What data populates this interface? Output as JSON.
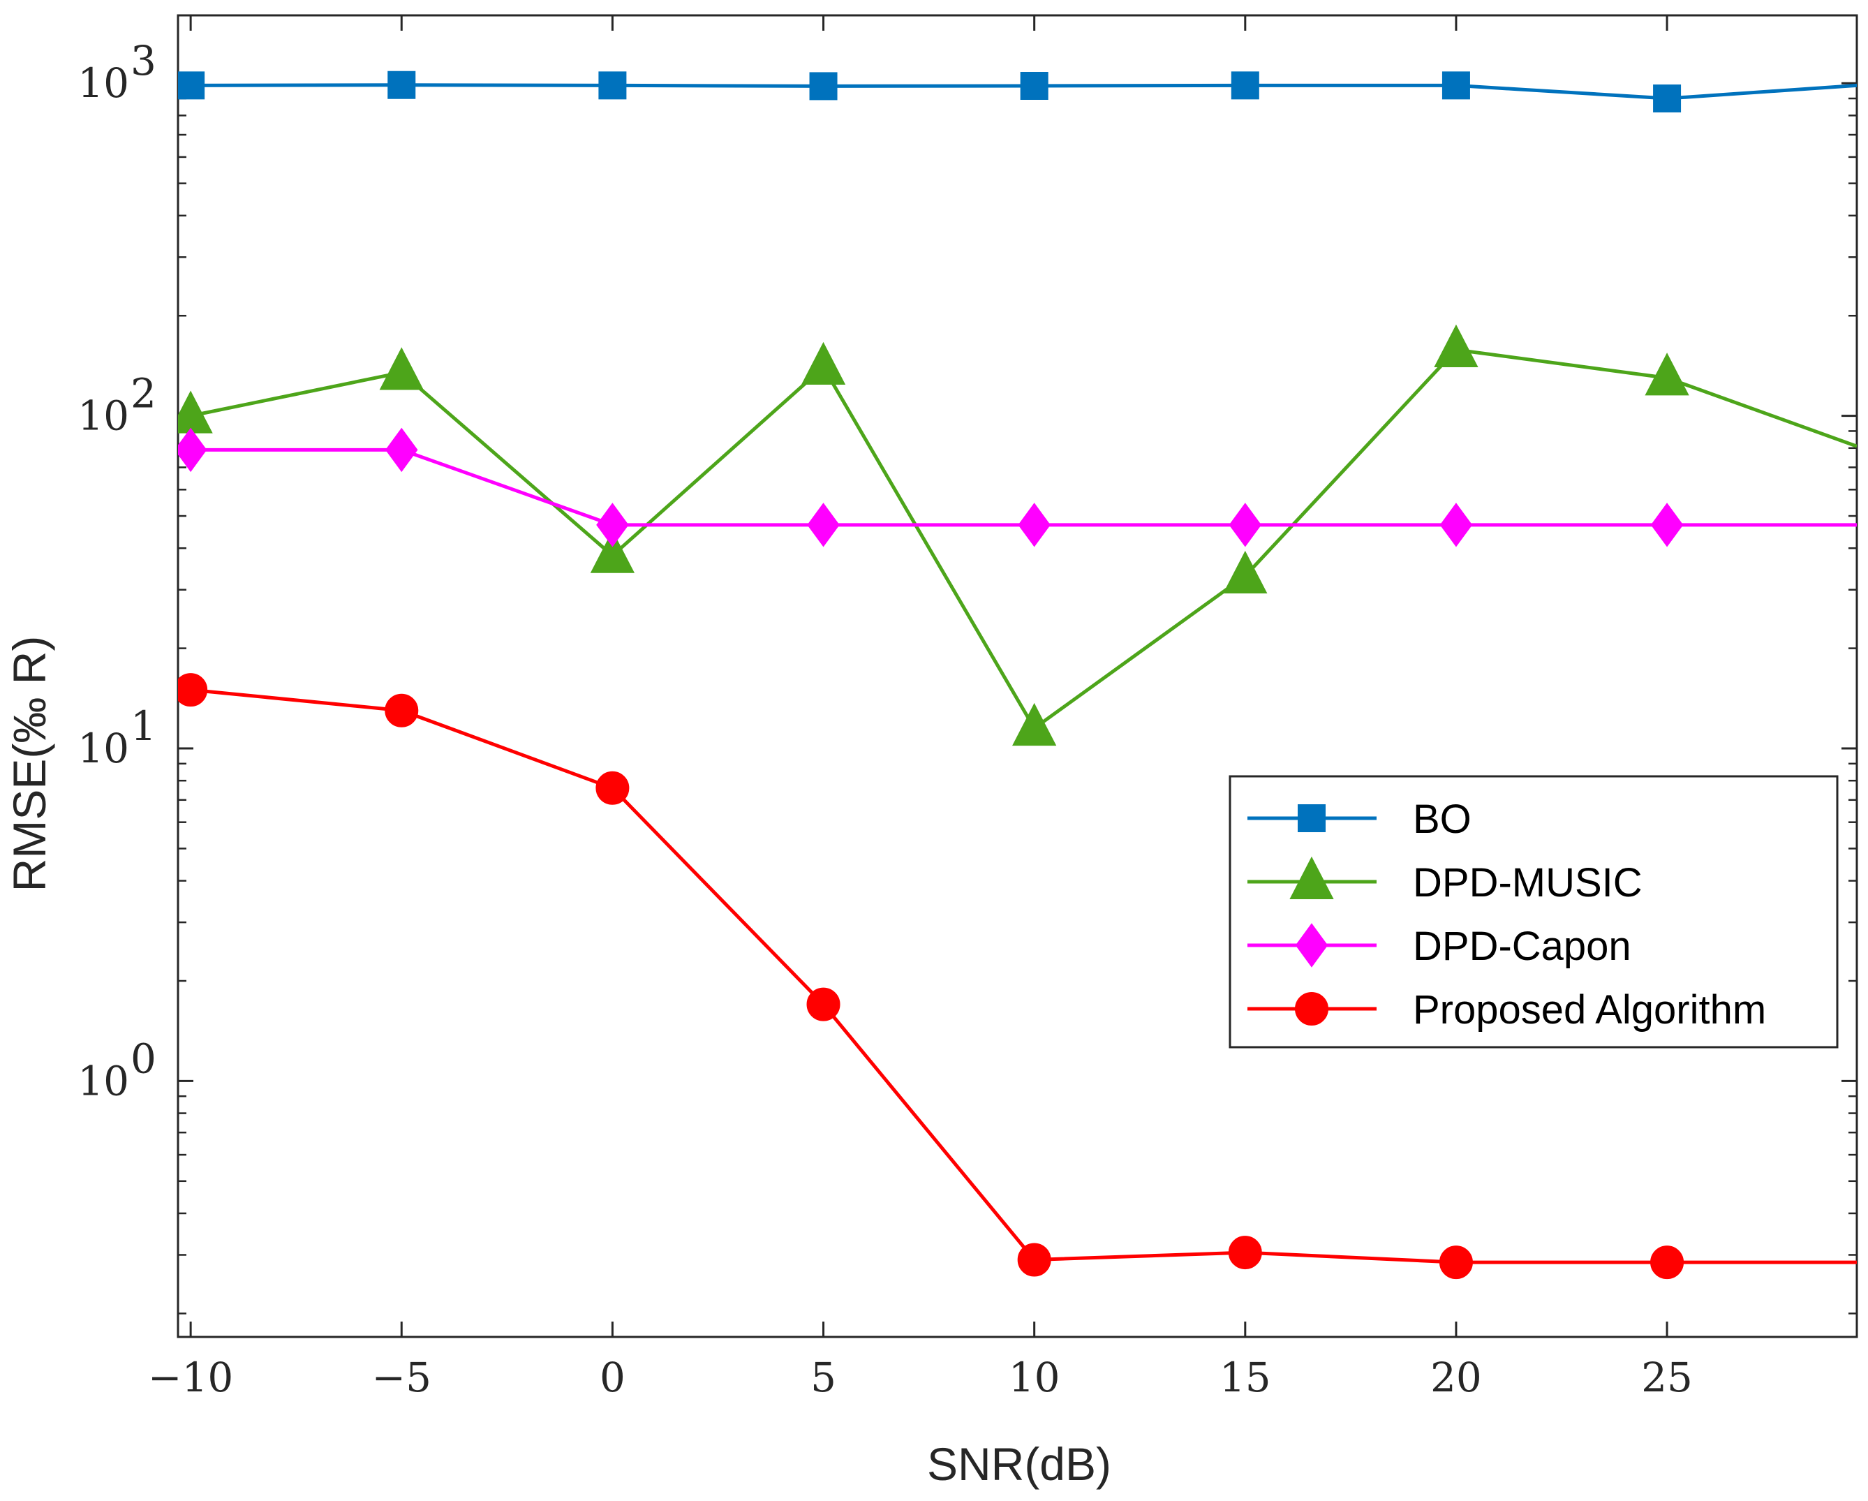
{
  "chart_data": {
    "type": "line",
    "xlabel": "SNR(dB)",
    "ylabel": "RMSE(‰ R)",
    "xlim": [
      -10.3,
      29.5
    ],
    "ylim": [
      0.17,
      1600
    ],
    "yscale": "log",
    "grid": false,
    "legend_position": "right",
    "x_ticks": [
      -10,
      -5,
      0,
      5,
      10,
      15,
      20,
      25
    ],
    "x_tick_labels": [
      "−10",
      "−5",
      "0",
      "5",
      "10",
      "15",
      "20",
      "25"
    ],
    "y_ticks": [
      1,
      10,
      100,
      1000
    ],
    "y_tick_exponents": [
      "0",
      "1",
      "2",
      "3"
    ],
    "y_tick_base": "10",
    "series": [
      {
        "name": "BO",
        "color": "#0072BD",
        "marker": "square",
        "x": [
          -10,
          -5,
          0,
          5,
          10,
          15,
          20,
          25,
          29.5
        ],
        "y": [
          985,
          988,
          985,
          980,
          982,
          985,
          985,
          900,
          985
        ]
      },
      {
        "name": "DPD-MUSIC",
        "color": "#4DA51A",
        "marker": "triangle",
        "x": [
          -10,
          -5,
          0,
          5,
          10,
          15,
          20,
          25,
          29.5
        ],
        "y": [
          100,
          135,
          38,
          140,
          11.5,
          33,
          158,
          130,
          81
        ]
      },
      {
        "name": "DPD-Capon",
        "color": "#FF00FF",
        "marker": "diamond",
        "x": [
          -10,
          -5,
          0,
          5,
          10,
          15,
          20,
          25,
          29.5
        ],
        "y": [
          79,
          79,
          47,
          47,
          47,
          47,
          47,
          47,
          47
        ]
      },
      {
        "name": "Proposed Algorithm",
        "color": "#FF0000",
        "marker": "circle",
        "x": [
          -10,
          -5,
          0,
          5,
          10,
          15,
          20,
          25,
          29.5
        ],
        "y": [
          15,
          13,
          7.6,
          1.7,
          0.29,
          0.305,
          0.285,
          0.285,
          0.285
        ]
      }
    ]
  }
}
